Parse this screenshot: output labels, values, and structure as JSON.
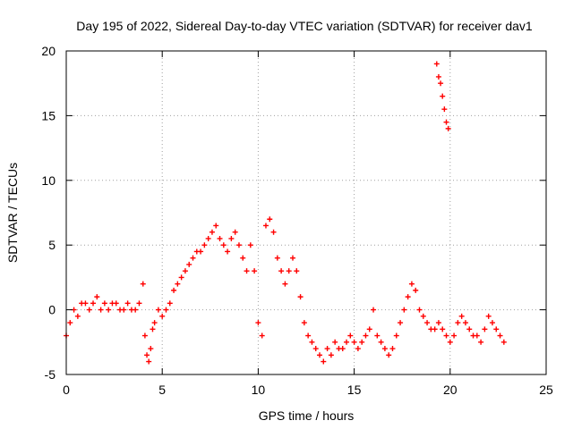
{
  "chart_data": {
    "type": "scatter",
    "title": "Day 195 of 2022, Sidereal Day-to-day VTEC variation (SDTVAR) for receiver dav1",
    "xlabel": "GPS time / hours",
    "ylabel": "SDTVAR / TECUs",
    "xlim": [
      0,
      25
    ],
    "ylim": [
      -5,
      20
    ],
    "xticks": [
      0,
      5,
      10,
      15,
      20,
      25
    ],
    "yticks": [
      -5,
      0,
      5,
      10,
      15,
      20
    ],
    "xtick_labels": [
      "0",
      "5",
      "10",
      "15",
      "20",
      "25"
    ],
    "ytick_labels": [
      "-5",
      "0",
      "5",
      "10",
      "15",
      "20"
    ],
    "grid": true,
    "marker": "+",
    "color": "#ff0000",
    "series": [
      {
        "name": "dav1",
        "x": [
          0.0,
          0.2,
          0.4,
          0.6,
          0.8,
          1.0,
          1.2,
          1.4,
          1.6,
          1.8,
          2.0,
          2.2,
          2.4,
          2.6,
          2.8,
          3.0,
          3.2,
          3.4,
          3.6,
          3.8,
          4.0,
          4.1,
          4.2,
          4.3,
          4.4,
          4.5,
          4.6,
          4.8,
          5.0,
          5.2,
          5.4,
          5.6,
          5.8,
          6.0,
          6.2,
          6.4,
          6.6,
          6.8,
          7.0,
          7.2,
          7.4,
          7.6,
          7.8,
          8.0,
          8.2,
          8.4,
          8.6,
          8.8,
          9.0,
          9.2,
          9.4,
          9.6,
          9.8,
          10.0,
          10.2,
          10.4,
          10.6,
          10.8,
          11.0,
          11.2,
          11.4,
          11.6,
          11.8,
          12.0,
          12.2,
          12.4,
          12.6,
          12.8,
          13.0,
          13.2,
          13.4,
          13.6,
          13.8,
          14.0,
          14.2,
          14.4,
          14.6,
          14.8,
          15.0,
          15.2,
          15.4,
          15.6,
          15.8,
          16.0,
          16.2,
          16.4,
          16.6,
          16.8,
          17.0,
          17.2,
          17.4,
          17.6,
          17.8,
          18.0,
          18.2,
          18.4,
          18.6,
          18.8,
          19.0,
          19.2,
          19.4,
          19.6,
          19.8,
          20.0,
          20.2,
          20.4,
          20.6,
          20.8,
          21.0,
          21.2,
          21.4,
          21.6,
          21.8,
          22.0,
          22.2,
          22.4,
          22.6,
          22.8,
          19.3,
          19.4,
          19.5,
          19.6,
          19.7,
          19.8,
          19.9
        ],
        "y": [
          -2.0,
          -1.0,
          0.0,
          -0.5,
          0.5,
          0.5,
          0.0,
          0.5,
          1.0,
          0.0,
          0.5,
          0.0,
          0.5,
          0.5,
          0.0,
          0.0,
          0.5,
          0.0,
          0.0,
          0.5,
          2.0,
          -2.0,
          -3.5,
          -4.0,
          -3.0,
          -1.5,
          -1.0,
          0.0,
          -0.5,
          0.0,
          0.5,
          1.5,
          2.0,
          2.5,
          3.0,
          3.5,
          4.0,
          4.5,
          4.5,
          5.0,
          5.5,
          6.0,
          6.5,
          5.5,
          5.0,
          4.5,
          5.5,
          6.0,
          5.0,
          4.0,
          3.0,
          5.0,
          3.0,
          -1.0,
          -2.0,
          6.5,
          7.0,
          6.0,
          4.0,
          3.0,
          2.0,
          3.0,
          4.0,
          3.0,
          1.0,
          -1.0,
          -2.0,
          -2.5,
          -3.0,
          -3.5,
          -4.0,
          -3.0,
          -3.5,
          -2.5,
          -3.0,
          -3.0,
          -2.5,
          -2.0,
          -2.5,
          -3.0,
          -2.5,
          -2.0,
          -1.5,
          0.0,
          -2.0,
          -2.5,
          -3.0,
          -3.5,
          -3.0,
          -2.0,
          -1.0,
          0.0,
          1.0,
          2.0,
          1.5,
          0.0,
          -0.5,
          -1.0,
          -1.5,
          -1.5,
          -1.0,
          -1.5,
          -2.0,
          -2.5,
          -2.0,
          -1.0,
          -0.5,
          -1.0,
          -1.5,
          -2.0,
          -2.0,
          -2.5,
          -1.5,
          -0.5,
          -1.0,
          -1.5,
          -2.0,
          -2.5,
          19.0,
          18.0,
          17.5,
          16.5,
          15.5,
          14.5,
          14.0
        ]
      }
    ]
  }
}
